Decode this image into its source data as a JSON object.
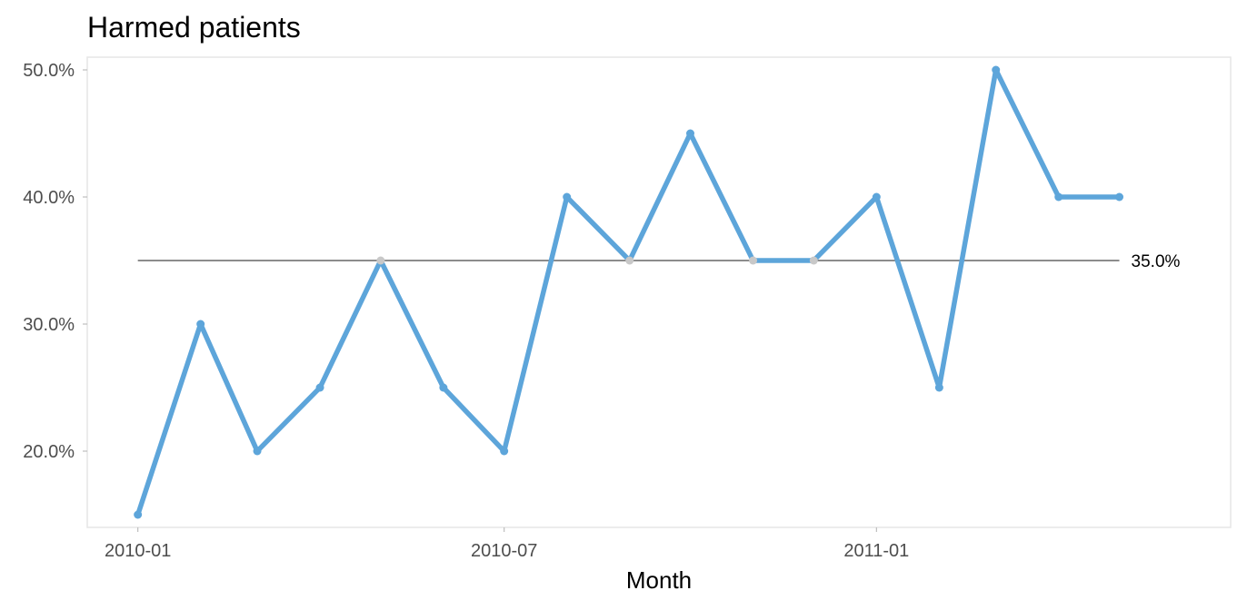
{
  "chart_data": {
    "type": "line",
    "title": "Harmed patients",
    "xlabel": "Month",
    "ylabel": "",
    "ylim": [
      0.14,
      0.51
    ],
    "xlim": [
      "2009-12-07",
      "2011-06-25"
    ],
    "y_ticks": [
      0.2,
      0.3,
      0.4,
      0.5
    ],
    "y_tick_labels": [
      "20.0%",
      "30.0%",
      "40.0%",
      "50.0%"
    ],
    "x_ticks": [
      "2010-01-01",
      "2010-07-01",
      "2011-01-01"
    ],
    "x_tick_labels": [
      "2010-01",
      "2010-07",
      "2011-01"
    ],
    "grid": false,
    "legend": "none",
    "series": [
      {
        "x": [
          "2010-01-01",
          "2010-02-01",
          "2010-03-01",
          "2010-04-01",
          "2010-05-01",
          "2010-06-01",
          "2010-07-01",
          "2010-08-01",
          "2010-09-01",
          "2010-10-01",
          "2010-11-01",
          "2010-12-01",
          "2011-01-01",
          "2011-02-01",
          "2011-03-01",
          "2011-04-01",
          "2011-05-01"
        ],
        "values": [
          0.15,
          0.3,
          0.2,
          0.25,
          0.35,
          0.25,
          0.2,
          0.4,
          0.35,
          0.45,
          0.35,
          0.35,
          0.4,
          0.25,
          0.5,
          0.4,
          0.4
        ]
      }
    ],
    "center_line": {
      "value": 0.35,
      "label": "35.0%",
      "x_start": "2010-01-01",
      "x_end": "2011-05-01"
    },
    "colors": {
      "line": "#5da5da",
      "point": "#5da5da",
      "point_on_center": "#c8c8c8",
      "center_line": "#8c8c8c",
      "panel_border": "#e6e6e6",
      "tick_text": "#4d4d4d"
    }
  }
}
